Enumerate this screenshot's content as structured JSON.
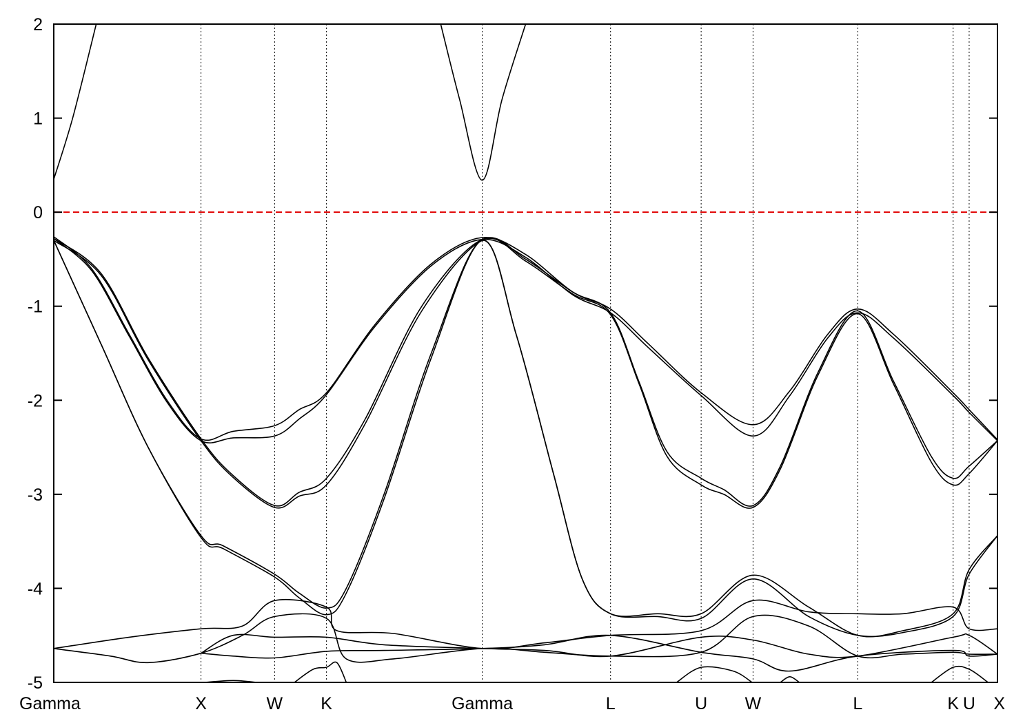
{
  "chart_data": {
    "type": "line",
    "title": "",
    "xlabel": "",
    "ylabel": "",
    "ylim": [
      -5,
      2
    ],
    "xlim": [
      0,
      1
    ],
    "grid": false,
    "y_ticks": [
      {
        "value": -5,
        "label": "-5"
      },
      {
        "value": -4,
        "label": "-4"
      },
      {
        "value": -3,
        "label": "-3"
      },
      {
        "value": -2,
        "label": "-2"
      },
      {
        "value": -1,
        "label": "-1"
      },
      {
        "value": 0,
        "label": "0"
      },
      {
        "value": 1,
        "label": "1"
      },
      {
        "value": 2,
        "label": "2"
      }
    ],
    "kpoints": [
      {
        "label": "Gamma",
        "x": 0.0
      },
      {
        "label": "X",
        "x": 0.156
      },
      {
        "label": "W",
        "x": 0.234
      },
      {
        "label": "K",
        "x": 0.289
      },
      {
        "label": "Gamma",
        "x": 0.454
      },
      {
        "label": "L",
        "x": 0.59
      },
      {
        "label": "U",
        "x": 0.686
      },
      {
        "label": "W",
        "x": 0.741
      },
      {
        "label": "L",
        "x": 0.852
      },
      {
        "label": "K",
        "x": 0.953
      },
      {
        "label": "U",
        "x": 0.97
      },
      {
        "label": "X",
        "x": 1.0
      }
    ],
    "reference_lines": [
      {
        "y": 0,
        "color": "#e00000",
        "style": "dashed"
      }
    ],
    "series": [
      {
        "points": [
          [
            0,
            0.35
          ],
          [
            0.02,
            1.0
          ],
          [
            0.045,
            2.0
          ]
        ]
      },
      {
        "points": [
          [
            0.41,
            2.0
          ],
          [
            0.43,
            1.2
          ],
          [
            0.454,
            0.34
          ],
          [
            0.475,
            1.2
          ],
          [
            0.5,
            2.0
          ]
        ]
      },
      {
        "points": [
          [
            0,
            -0.26
          ],
          [
            0.04,
            -0.6
          ],
          [
            0.08,
            -1.3
          ],
          [
            0.12,
            -2.0
          ],
          [
            0.156,
            -2.41
          ],
          [
            0.19,
            -2.33
          ],
          [
            0.234,
            -2.27
          ],
          [
            0.26,
            -2.1
          ],
          [
            0.289,
            -1.92
          ],
          [
            0.34,
            -1.2
          ],
          [
            0.4,
            -0.55
          ],
          [
            0.454,
            -0.27
          ],
          [
            0.5,
            -0.45
          ],
          [
            0.55,
            -0.85
          ],
          [
            0.59,
            -1.03
          ],
          [
            0.63,
            -1.4
          ],
          [
            0.686,
            -1.92
          ],
          [
            0.741,
            -2.26
          ],
          [
            0.78,
            -1.9
          ],
          [
            0.82,
            -1.3
          ],
          [
            0.852,
            -1.03
          ],
          [
            0.89,
            -1.3
          ],
          [
            0.953,
            -1.92
          ],
          [
            0.97,
            -2.1
          ],
          [
            1.0,
            -2.42
          ]
        ]
      },
      {
        "points": [
          [
            0,
            -0.28
          ],
          [
            0.04,
            -0.62
          ],
          [
            0.08,
            -1.32
          ],
          [
            0.12,
            -2.02
          ],
          [
            0.156,
            -2.43
          ],
          [
            0.19,
            -2.4
          ],
          [
            0.234,
            -2.38
          ],
          [
            0.26,
            -2.2
          ],
          [
            0.289,
            -1.94
          ],
          [
            0.34,
            -1.22
          ],
          [
            0.4,
            -0.57
          ],
          [
            0.454,
            -0.29
          ],
          [
            0.5,
            -0.48
          ],
          [
            0.55,
            -0.88
          ],
          [
            0.59,
            -1.07
          ],
          [
            0.63,
            -1.44
          ],
          [
            0.686,
            -1.95
          ],
          [
            0.741,
            -2.38
          ],
          [
            0.78,
            -1.95
          ],
          [
            0.82,
            -1.34
          ],
          [
            0.852,
            -1.07
          ],
          [
            0.89,
            -1.34
          ],
          [
            0.953,
            -1.95
          ],
          [
            0.97,
            -2.13
          ],
          [
            1.0,
            -2.43
          ]
        ]
      },
      {
        "points": [
          [
            0,
            -0.28
          ],
          [
            0.05,
            -0.65
          ],
          [
            0.1,
            -1.55
          ],
          [
            0.156,
            -2.41
          ],
          [
            0.19,
            -2.8
          ],
          [
            0.234,
            -3.12
          ],
          [
            0.26,
            -2.98
          ],
          [
            0.289,
            -2.83
          ],
          [
            0.33,
            -2.2
          ],
          [
            0.39,
            -1.0
          ],
          [
            0.454,
            -0.29
          ],
          [
            0.5,
            -0.5
          ],
          [
            0.55,
            -0.85
          ],
          [
            0.59,
            -1.07
          ],
          [
            0.62,
            -1.8
          ],
          [
            0.65,
            -2.55
          ],
          [
            0.686,
            -2.83
          ],
          [
            0.71,
            -2.95
          ],
          [
            0.741,
            -3.12
          ],
          [
            0.77,
            -2.7
          ],
          [
            0.81,
            -1.7
          ],
          [
            0.852,
            -1.05
          ],
          [
            0.89,
            -1.8
          ],
          [
            0.93,
            -2.6
          ],
          [
            0.953,
            -2.83
          ],
          [
            0.97,
            -2.7
          ],
          [
            1.0,
            -2.43
          ]
        ]
      },
      {
        "points": [
          [
            0,
            -0.3
          ],
          [
            0.05,
            -0.67
          ],
          [
            0.1,
            -1.57
          ],
          [
            0.156,
            -2.43
          ],
          [
            0.19,
            -2.82
          ],
          [
            0.234,
            -3.14
          ],
          [
            0.26,
            -3.02
          ],
          [
            0.289,
            -2.9
          ],
          [
            0.33,
            -2.25
          ],
          [
            0.39,
            -1.05
          ],
          [
            0.454,
            -0.3
          ],
          [
            0.5,
            -0.52
          ],
          [
            0.55,
            -0.87
          ],
          [
            0.59,
            -1.09
          ],
          [
            0.62,
            -1.82
          ],
          [
            0.65,
            -2.6
          ],
          [
            0.686,
            -2.9
          ],
          [
            0.71,
            -3.0
          ],
          [
            0.741,
            -3.14
          ],
          [
            0.77,
            -2.73
          ],
          [
            0.81,
            -1.73
          ],
          [
            0.852,
            -1.08
          ],
          [
            0.89,
            -1.83
          ],
          [
            0.93,
            -2.66
          ],
          [
            0.953,
            -2.9
          ],
          [
            0.97,
            -2.78
          ],
          [
            1.0,
            -2.43
          ]
        ]
      },
      {
        "points": [
          [
            0,
            -0.3
          ],
          [
            0.05,
            -1.4
          ],
          [
            0.1,
            -2.5
          ],
          [
            0.156,
            -3.44
          ],
          [
            0.18,
            -3.55
          ],
          [
            0.234,
            -3.85
          ],
          [
            0.26,
            -4.05
          ],
          [
            0.289,
            -4.21
          ],
          [
            0.31,
            -4.0
          ],
          [
            0.35,
            -3.0
          ],
          [
            0.4,
            -1.5
          ],
          [
            0.454,
            -0.3
          ],
          [
            0.49,
            -1.3
          ],
          [
            0.53,
            -2.8
          ],
          [
            0.56,
            -3.9
          ],
          [
            0.59,
            -4.27
          ],
          [
            0.64,
            -4.27
          ],
          [
            0.686,
            -4.27
          ],
          [
            0.741,
            -3.86
          ],
          [
            0.8,
            -4.2
          ],
          [
            0.852,
            -4.5
          ],
          [
            0.9,
            -4.45
          ],
          [
            0.953,
            -4.27
          ],
          [
            0.97,
            -3.8
          ],
          [
            1.0,
            -3.44
          ]
        ]
      },
      {
        "points": [
          [
            0,
            -0.3
          ],
          [
            0.05,
            -1.4
          ],
          [
            0.1,
            -2.5
          ],
          [
            0.156,
            -3.46
          ],
          [
            0.18,
            -3.58
          ],
          [
            0.234,
            -3.88
          ],
          [
            0.26,
            -4.1
          ],
          [
            0.289,
            -4.28
          ],
          [
            0.31,
            -4.05
          ],
          [
            0.35,
            -3.05
          ],
          [
            0.4,
            -1.55
          ],
          [
            0.454,
            -0.3
          ],
          [
            0.49,
            -1.3
          ],
          [
            0.53,
            -2.8
          ],
          [
            0.56,
            -3.9
          ],
          [
            0.59,
            -4.27
          ],
          [
            0.64,
            -4.3
          ],
          [
            0.686,
            -4.32
          ],
          [
            0.741,
            -3.9
          ],
          [
            0.8,
            -4.3
          ],
          [
            0.852,
            -4.5
          ],
          [
            0.9,
            -4.47
          ],
          [
            0.953,
            -4.3
          ],
          [
            0.97,
            -3.85
          ],
          [
            1.0,
            -3.44
          ]
        ]
      },
      {
        "points": [
          [
            0,
            -4.64
          ],
          [
            0.08,
            -4.52
          ],
          [
            0.156,
            -4.43
          ],
          [
            0.2,
            -4.4
          ],
          [
            0.234,
            -4.13
          ],
          [
            0.289,
            -4.2
          ],
          [
            0.3,
            -4.45
          ],
          [
            0.36,
            -4.48
          ],
          [
            0.454,
            -4.64
          ],
          [
            0.52,
            -4.58
          ],
          [
            0.59,
            -4.5
          ],
          [
            0.686,
            -4.45
          ],
          [
            0.741,
            -4.13
          ],
          [
            0.8,
            -4.25
          ],
          [
            0.852,
            -4.27
          ],
          [
            0.9,
            -4.27
          ],
          [
            0.953,
            -4.2
          ],
          [
            0.97,
            -4.43
          ],
          [
            1.0,
            -4.43
          ]
        ]
      },
      {
        "points": [
          [
            0,
            -4.64
          ],
          [
            0.06,
            -4.72
          ],
          [
            0.1,
            -4.79
          ],
          [
            0.156,
            -4.69
          ],
          [
            0.2,
            -4.5
          ],
          [
            0.234,
            -4.3
          ],
          [
            0.289,
            -4.32
          ],
          [
            0.31,
            -4.75
          ],
          [
            0.36,
            -4.75
          ],
          [
            0.454,
            -4.64
          ],
          [
            0.52,
            -4.68
          ],
          [
            0.59,
            -4.72
          ],
          [
            0.686,
            -4.68
          ],
          [
            0.741,
            -4.3
          ],
          [
            0.8,
            -4.4
          ],
          [
            0.852,
            -4.72
          ],
          [
            0.9,
            -4.7
          ],
          [
            0.953,
            -4.68
          ],
          [
            0.97,
            -4.7
          ],
          [
            1.0,
            -4.7
          ]
        ]
      },
      {
        "points": [
          [
            0.156,
            -4.69
          ],
          [
            0.19,
            -4.5
          ],
          [
            0.234,
            -4.52
          ],
          [
            0.289,
            -4.52
          ],
          [
            0.35,
            -4.6
          ],
          [
            0.454,
            -4.64
          ],
          [
            0.52,
            -4.66
          ],
          [
            0.59,
            -4.72
          ],
          [
            0.686,
            -4.52
          ],
          [
            0.741,
            -4.55
          ],
          [
            0.8,
            -4.7
          ],
          [
            0.852,
            -4.72
          ],
          [
            0.953,
            -4.52
          ],
          [
            0.97,
            -4.5
          ],
          [
            1.0,
            -4.7
          ]
        ]
      },
      {
        "points": [
          [
            0.156,
            -4.69
          ],
          [
            0.19,
            -4.72
          ],
          [
            0.234,
            -4.74
          ],
          [
            0.289,
            -4.67
          ],
          [
            0.35,
            -4.66
          ],
          [
            0.454,
            -4.64
          ],
          [
            0.52,
            -4.6
          ],
          [
            0.59,
            -4.5
          ],
          [
            0.686,
            -4.68
          ],
          [
            0.741,
            -4.75
          ],
          [
            0.78,
            -4.88
          ],
          [
            0.852,
            -4.72
          ],
          [
            0.953,
            -4.66
          ],
          [
            0.97,
            -4.72
          ],
          [
            1.0,
            -4.7
          ]
        ]
      },
      {
        "points": [
          [
            0.16,
            -5.0
          ],
          [
            0.19,
            -4.98
          ],
          [
            0.215,
            -5.0
          ]
        ]
      },
      {
        "points": [
          [
            0.255,
            -5.0
          ],
          [
            0.275,
            -4.86
          ],
          [
            0.289,
            -4.84
          ],
          [
            0.3,
            -4.79
          ],
          [
            0.31,
            -5.0
          ]
        ]
      },
      {
        "points": [
          [
            0.66,
            -5.0
          ],
          [
            0.686,
            -4.84
          ],
          [
            0.72,
            -4.88
          ],
          [
            0.74,
            -5.0
          ]
        ]
      },
      {
        "points": [
          [
            0.77,
            -5.0
          ],
          [
            0.78,
            -4.94
          ],
          [
            0.79,
            -5.0
          ]
        ]
      },
      {
        "points": [
          [
            0.93,
            -5.0
          ],
          [
            0.953,
            -4.84
          ],
          [
            0.97,
            -4.86
          ],
          [
            0.99,
            -5.0
          ]
        ]
      }
    ]
  }
}
